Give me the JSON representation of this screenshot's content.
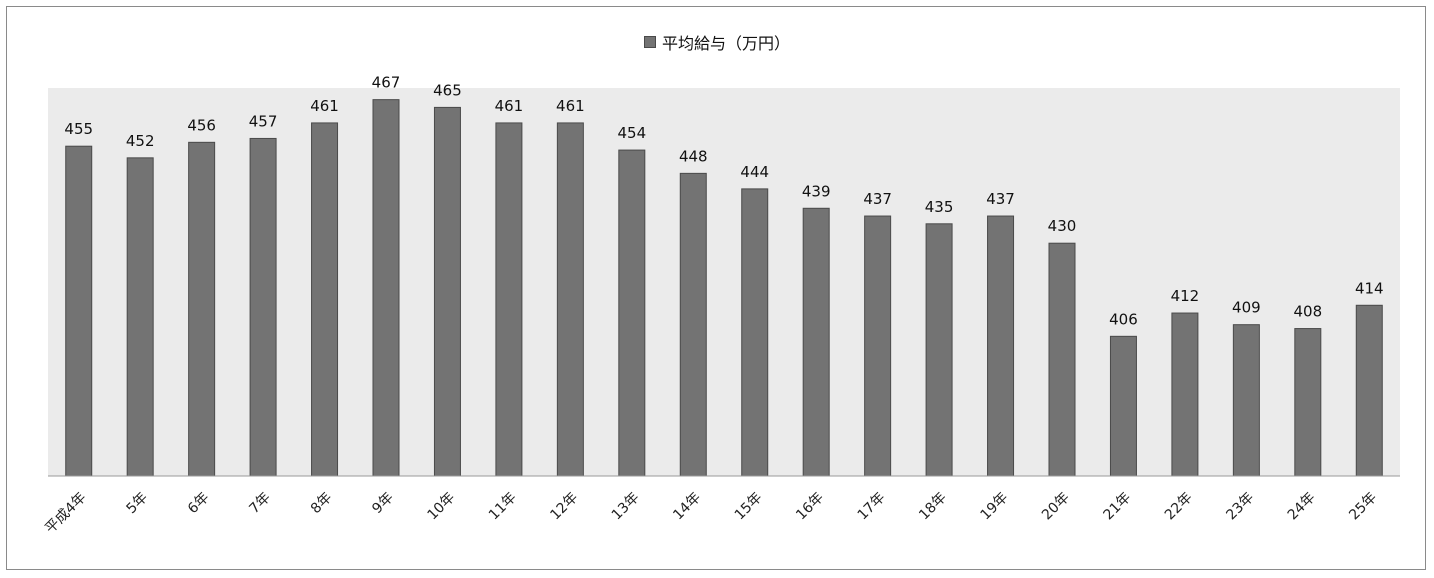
{
  "chart_data": {
    "type": "bar",
    "legend": "平均給与（万円）",
    "legend_position": "top",
    "categories": [
      "平成4年",
      "5年",
      "6年",
      "7年",
      "8年",
      "9年",
      "10年",
      "11年",
      "12年",
      "13年",
      "14年",
      "15年",
      "16年",
      "17年",
      "18年",
      "19年",
      "20年",
      "21年",
      "22年",
      "23年",
      "24年",
      "25年"
    ],
    "series": [
      {
        "name": "平均給与（万円）",
        "values": [
          455,
          452,
          456,
          457,
          461,
          467,
          465,
          461,
          461,
          454,
          448,
          444,
          439,
          437,
          435,
          437,
          430,
          406,
          412,
          409,
          408,
          414
        ]
      }
    ],
    "ylim": [
      370,
      470
    ],
    "grid": false,
    "colors": {
      "bar": "#737373",
      "bar_stroke": "#4a4a4a",
      "plot_bg": "#ebebeb"
    }
  }
}
